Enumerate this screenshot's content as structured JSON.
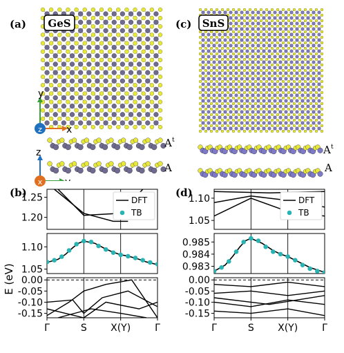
{
  "panels": {
    "a": {
      "label": "(a)",
      "material": "GeS",
      "top_axes": {
        "up": "y",
        "right": "x",
        "center": "z"
      },
      "side_axes": {
        "up": "z",
        "right": "y",
        "center": "x"
      },
      "layer_labels": {
        "top": "A",
        "top_sup": "t",
        "bottom": "A"
      }
    },
    "c": {
      "label": "(c)",
      "material": "SnS",
      "layer_labels": {
        "top": "A",
        "top_sup": "t",
        "bottom": "A"
      }
    },
    "b": {
      "label": "(b)"
    },
    "d": {
      "label": "(d)"
    }
  },
  "colors": {
    "ge_atom": "#6f6a8f",
    "sn_atom": "#7e7ac8",
    "s_atom": "#e8e83a",
    "dft_line": "#000000",
    "tb_marker": "#2ab3b3",
    "x_axis": "#e07020",
    "y_axis": "#3aa03a",
    "z_axis": "#2070c0"
  },
  "chart_data": [
    {
      "panel": "b",
      "type": "line",
      "ylabel": "E (eV)",
      "x_ticks": [
        "Γ",
        "S",
        "X(Y)",
        "Γ"
      ],
      "legend": [
        "DFT",
        "TB"
      ],
      "legend_position": "top-right",
      "broken_axis": [
        {
          "ylim": [
            1.17,
            1.27
          ],
          "ticks": [
            "1.25",
            "1.20"
          ],
          "tick_values": [
            1.25,
            1.2
          ]
        },
        {
          "ylim": [
            1.04,
            1.13
          ],
          "ticks": [
            "1.10",
            "1.05"
          ],
          "tick_values": [
            1.1,
            1.05
          ]
        },
        {
          "ylim": [
            -0.17,
            0.01
          ],
          "ticks": [
            "0.00",
            "-0.05",
            "-0.10",
            "-0.15"
          ],
          "tick_values": [
            0.0,
            -0.05,
            -0.1,
            -0.15
          ]
        }
      ],
      "fermi_level": 0.0,
      "series": [
        {
          "name": "DFT",
          "style": "line",
          "x": [
            0,
            0.3,
            0.5,
            0.7,
            0.85,
            1.0,
            1.3,
            1.6,
            1.8,
            2.0,
            2.15,
            2.3,
            2.5,
            2.7,
            3.0
          ],
          "y": [
            1.065,
            1.072,
            1.083,
            1.098,
            1.108,
            1.113,
            1.108,
            1.095,
            1.088,
            1.082,
            1.08,
            1.077,
            1.072,
            1.066,
            1.06
          ]
        },
        {
          "name": "TB",
          "style": "markers",
          "x": [
            0,
            0.2,
            0.4,
            0.6,
            0.8,
            1.0,
            1.2,
            1.4,
            1.6,
            1.8,
            2.0,
            2.2,
            2.4,
            2.6,
            2.8,
            3.0
          ],
          "y": [
            1.066,
            1.07,
            1.078,
            1.092,
            1.106,
            1.113,
            1.111,
            1.102,
            1.094,
            1.087,
            1.082,
            1.079,
            1.075,
            1.07,
            1.065,
            1.061
          ]
        }
      ]
    },
    {
      "panel": "d",
      "type": "line",
      "x_ticks": [
        "Γ",
        "S",
        "X(Y)",
        "Γ"
      ],
      "legend": [
        "DFT",
        "TB"
      ],
      "legend_position": "top-right",
      "broken_axis": [
        {
          "ylim": [
            1.03,
            1.12
          ],
          "ticks": [
            "1.10",
            "1.05"
          ],
          "tick_values": [
            1.1,
            1.05
          ]
        },
        {
          "ylim": [
            0.9824,
            0.9857
          ],
          "ticks": [
            "0.985",
            "0.984",
            "0.983"
          ],
          "tick_values": [
            0.985,
            0.984,
            0.983
          ]
        },
        {
          "ylim": [
            -0.17,
            0.01
          ],
          "ticks": [
            "0.00",
            "-0.05",
            "-0.10",
            "-0.15"
          ],
          "tick_values": [
            0.0,
            -0.05,
            -0.1,
            -0.15
          ]
        }
      ],
      "fermi_level": 0.0,
      "series": [
        {
          "name": "DFT",
          "style": "line",
          "x": [
            0,
            0.3,
            0.5,
            0.7,
            0.85,
            1.0,
            1.3,
            1.6,
            1.8,
            2.0,
            2.2,
            2.4,
            2.6,
            2.8,
            3.0
          ],
          "y": [
            0.9826,
            0.9831,
            0.9838,
            0.9846,
            0.9851,
            0.9853,
            0.9849,
            0.9843,
            0.984,
            0.9838,
            0.9835,
            0.9832,
            0.9829,
            0.9827,
            0.9825
          ]
        },
        {
          "name": "TB",
          "style": "markers",
          "x": [
            0,
            0.2,
            0.4,
            0.6,
            0.8,
            1.0,
            1.2,
            1.4,
            1.6,
            1.8,
            2.0,
            2.2,
            2.4,
            2.6,
            2.8,
            3.0
          ],
          "y": [
            0.9826,
            0.9829,
            0.9834,
            0.9842,
            0.985,
            0.9853,
            0.9851,
            0.9846,
            0.9842,
            0.984,
            0.9838,
            0.9835,
            0.9831,
            0.9828,
            0.9826,
            0.9825
          ]
        }
      ]
    }
  ]
}
